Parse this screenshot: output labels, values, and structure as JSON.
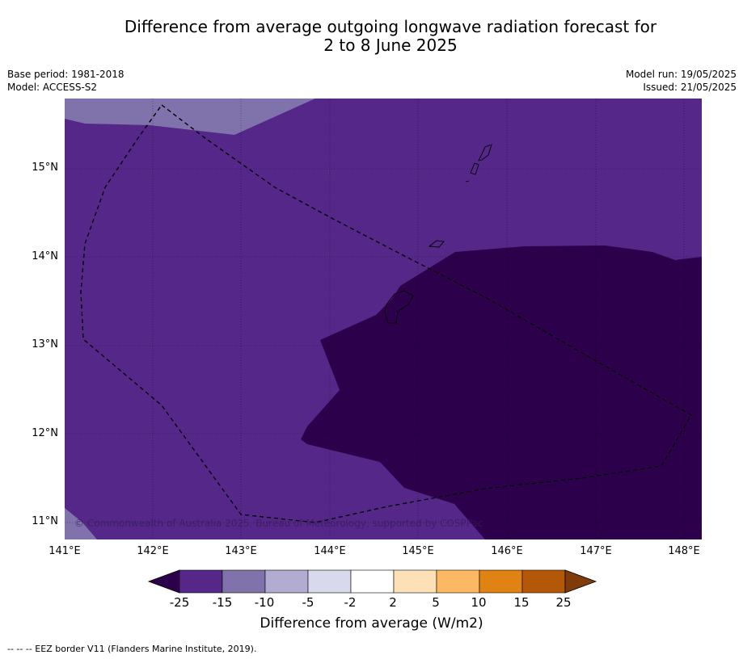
{
  "title_line1": "Difference from average outgoing longwave radiation forecast for",
  "title_line2": "2 to 8 June 2025",
  "base_period": "Base period: 1981-2018",
  "model": "Model: ACCESS-S2",
  "model_run": "Model run: 19/05/2025",
  "issued": "Issued: 21/05/2025",
  "latitudes": [
    "15°N",
    "14°N",
    "13°N",
    "12°N",
    "11°N"
  ],
  "longitudes": [
    "141°E",
    "142°E",
    "143°E",
    "144°E",
    "145°E",
    "146°E",
    "147°E",
    "148°E"
  ],
  "copyright": "© Commonwealth of Australia 2025, Bureau of Meteorology, supported by COSPPac",
  "colorbar": {
    "ticks": [
      "-25",
      "-15",
      "-10",
      "-5",
      "-2",
      "2",
      "5",
      "10",
      "15",
      "25"
    ],
    "colors": [
      "#2d004b",
      "#542788",
      "#8073ac",
      "#b2abd2",
      "#d8daeb",
      "#ffffff",
      "#fee0b6",
      "#fdb863",
      "#e08214",
      "#b35806",
      "#7f3b08"
    ],
    "label": "Difference from average (W/m2)"
  },
  "footer": "--  --  -- EEZ border V11 (Flanders Marine Institute, 2019)."
}
